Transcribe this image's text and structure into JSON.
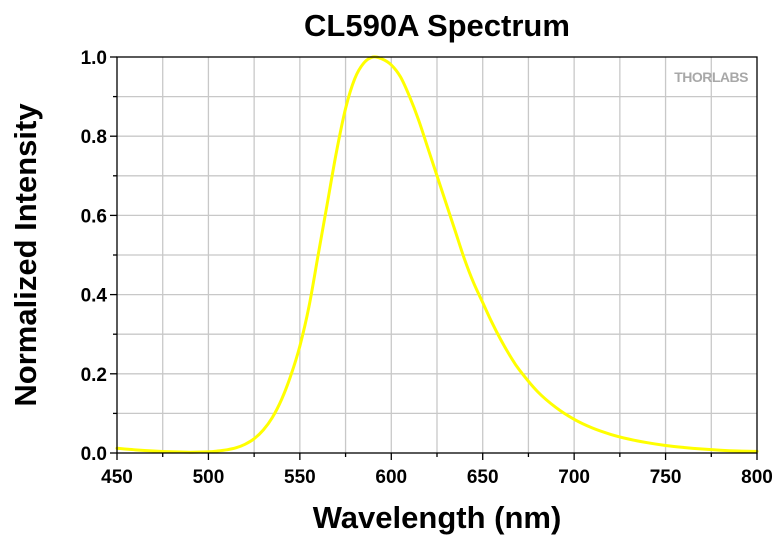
{
  "chart_data": {
    "type": "line",
    "title": "CL590A Spectrum",
    "xlabel": "Wavelength (nm)",
    "ylabel": "Normalized Intensity",
    "xlim": [
      450,
      800
    ],
    "ylim": [
      0,
      1.0
    ],
    "x_ticks": [
      450,
      500,
      550,
      600,
      650,
      700,
      750,
      800
    ],
    "x_tick_labels": [
      "450",
      "500",
      "550",
      "600",
      "650",
      "700",
      "750",
      "800"
    ],
    "y_ticks": [
      0,
      0.2,
      0.4,
      0.6,
      0.8,
      1.0
    ],
    "y_tick_labels": [
      "0.0",
      "0.2",
      "0.4",
      "0.6",
      "0.8",
      "1.0"
    ],
    "grid": true,
    "series": [
      {
        "name": "CL590A",
        "color": "#ffff00",
        "x": [
          450,
          460,
          470,
          480,
          490,
          500,
          505,
          510,
          515,
          520,
          525,
          530,
          535,
          540,
          545,
          550,
          555,
          560,
          565,
          570,
          575,
          580,
          585,
          590,
          595,
          600,
          605,
          610,
          615,
          620,
          625,
          630,
          635,
          640,
          645,
          650,
          655,
          660,
          665,
          670,
          680,
          690,
          700,
          710,
          720,
          730,
          740,
          750,
          760,
          770,
          780,
          790,
          800
        ],
        "y": [
          0.012,
          0.008,
          0.005,
          0.003,
          0.002,
          0.003,
          0.005,
          0.008,
          0.013,
          0.022,
          0.036,
          0.058,
          0.09,
          0.135,
          0.195,
          0.27,
          0.37,
          0.5,
          0.63,
          0.76,
          0.87,
          0.945,
          0.985,
          1.0,
          0.995,
          0.98,
          0.95,
          0.9,
          0.84,
          0.77,
          0.7,
          0.63,
          0.56,
          0.49,
          0.43,
          0.38,
          0.33,
          0.285,
          0.245,
          0.21,
          0.155,
          0.115,
          0.085,
          0.063,
          0.047,
          0.035,
          0.026,
          0.019,
          0.014,
          0.01,
          0.007,
          0.005,
          0.004
        ]
      }
    ],
    "watermark": "THORLABS"
  }
}
